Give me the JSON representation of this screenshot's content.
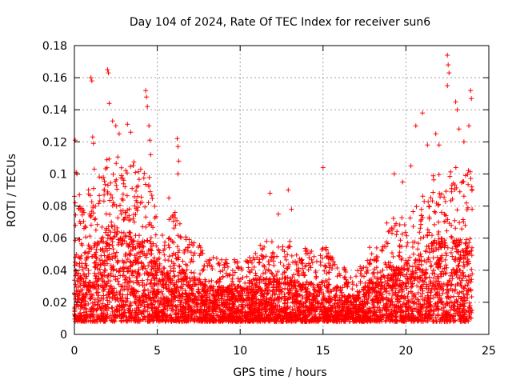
{
  "chart_data": {
    "type": "scatter",
    "title": "Day 104 of 2024, Rate Of TEC Index for receiver sun6",
    "xlabel": "GPS time / hours",
    "ylabel": "ROTI / TECUs",
    "xlim": [
      0,
      25
    ],
    "ylim": [
      0,
      0.18
    ],
    "xticks": [
      0,
      5,
      10,
      15,
      20,
      25
    ],
    "xtick_labels": [
      "0",
      "5",
      "10",
      "15",
      "20",
      "25"
    ],
    "yticks": [
      0,
      0.02,
      0.04,
      0.06,
      0.08,
      0.1,
      0.12,
      0.14,
      0.16,
      0.18
    ],
    "ytick_labels": [
      "0",
      "0.02",
      "0.04",
      "0.06",
      "0.08",
      "0.1",
      "0.12",
      "0.14",
      "0.16",
      "0.18"
    ],
    "grid": true,
    "marker": "+",
    "series_color": "#ff0000",
    "x_data_range": [
      0,
      24
    ],
    "envelope": {
      "hours": [
        0,
        0.5,
        1,
        1.5,
        2,
        2.5,
        3,
        3.5,
        4,
        4.5,
        5,
        5.5,
        6,
        6.5,
        7,
        7.5,
        8,
        8.5,
        9,
        9.5,
        10,
        10.5,
        11,
        11.5,
        12,
        12.5,
        13,
        13.5,
        14,
        14.5,
        15,
        15.5,
        16,
        16.5,
        17,
        17.5,
        18,
        18.5,
        19,
        19.5,
        20,
        20.5,
        21,
        21.5,
        22,
        22.5,
        23,
        23.5,
        24
      ],
      "typical_max_roti": [
        0.08,
        0.07,
        0.09,
        0.09,
        0.11,
        0.11,
        0.1,
        0.1,
        0.1,
        0.1,
        0.06,
        0.06,
        0.07,
        0.06,
        0.05,
        0.05,
        0.04,
        0.04,
        0.04,
        0.04,
        0.04,
        0.04,
        0.05,
        0.05,
        0.05,
        0.05,
        0.05,
        0.04,
        0.05,
        0.04,
        0.05,
        0.04,
        0.04,
        0.03,
        0.03,
        0.04,
        0.05,
        0.05,
        0.07,
        0.06,
        0.07,
        0.07,
        0.08,
        0.09,
        0.1,
        0.09,
        0.1,
        0.09,
        0.1
      ]
    },
    "notable_points": [
      [
        0.05,
        0.121
      ],
      [
        0.1,
        0.101
      ],
      [
        0.15,
        0.1
      ],
      [
        0.3,
        0.087
      ],
      [
        1.0,
        0.16
      ],
      [
        1.05,
        0.158
      ],
      [
        1.1,
        0.123
      ],
      [
        1.15,
        0.119
      ],
      [
        1.2,
        0.103
      ],
      [
        2.0,
        0.165
      ],
      [
        2.05,
        0.163
      ],
      [
        2.1,
        0.144
      ],
      [
        2.3,
        0.133
      ],
      [
        2.5,
        0.13
      ],
      [
        2.7,
        0.125
      ],
      [
        3.2,
        0.131
      ],
      [
        3.4,
        0.126
      ],
      [
        4.3,
        0.152
      ],
      [
        4.35,
        0.148
      ],
      [
        4.4,
        0.142
      ],
      [
        4.5,
        0.13
      ],
      [
        4.55,
        0.121
      ],
      [
        4.6,
        0.112
      ],
      [
        6.2,
        0.122
      ],
      [
        6.25,
        0.117
      ],
      [
        6.3,
        0.108
      ],
      [
        6.25,
        0.1
      ],
      [
        5.7,
        0.085
      ],
      [
        11.8,
        0.088
      ],
      [
        12.3,
        0.075
      ],
      [
        12.9,
        0.09
      ],
      [
        13.1,
        0.078
      ],
      [
        15.0,
        0.104
      ],
      [
        19.3,
        0.1
      ],
      [
        19.8,
        0.095
      ],
      [
        20.3,
        0.105
      ],
      [
        20.6,
        0.13
      ],
      [
        21.0,
        0.138
      ],
      [
        21.3,
        0.118
      ],
      [
        21.8,
        0.125
      ],
      [
        22.0,
        0.118
      ],
      [
        22.5,
        0.174
      ],
      [
        22.55,
        0.168
      ],
      [
        22.6,
        0.163
      ],
      [
        22.5,
        0.155
      ],
      [
        23.0,
        0.145
      ],
      [
        23.1,
        0.14
      ],
      [
        23.2,
        0.128
      ],
      [
        23.5,
        0.12
      ],
      [
        23.9,
        0.152
      ],
      [
        23.95,
        0.147
      ],
      [
        23.8,
        0.13
      ]
    ]
  }
}
